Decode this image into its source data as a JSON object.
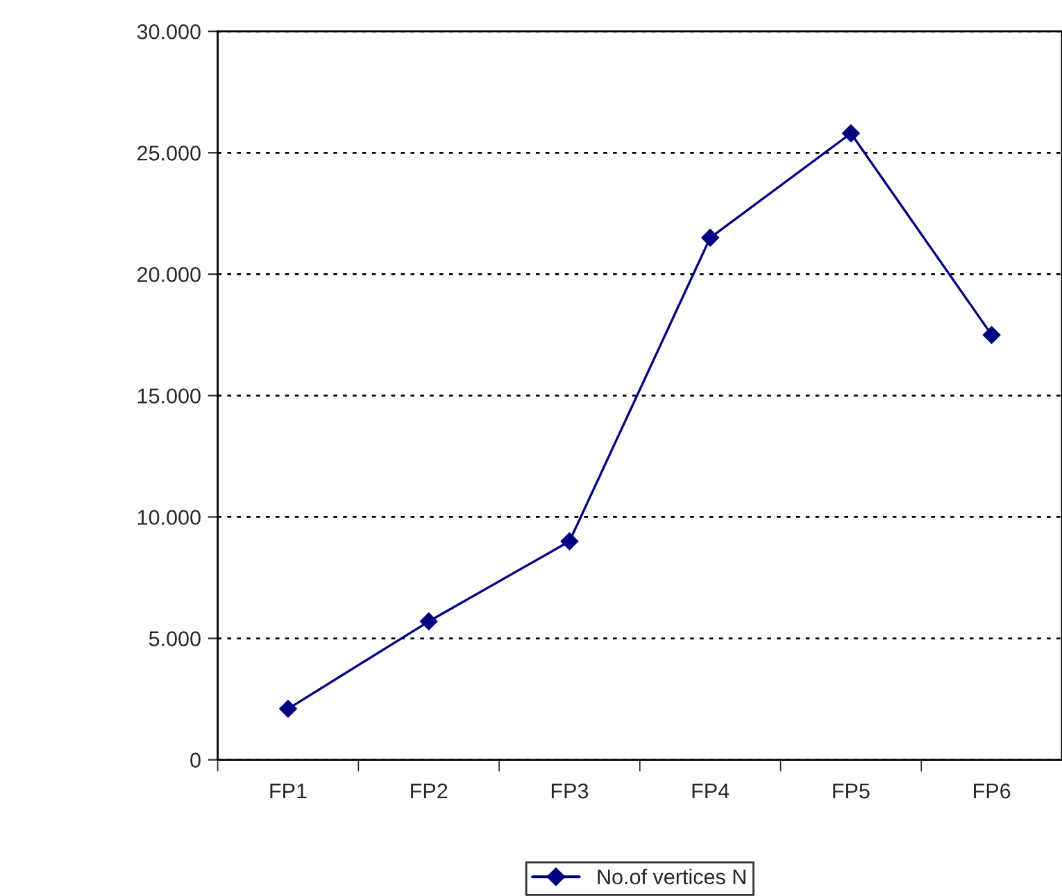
{
  "chart_data": {
    "type": "line",
    "categories": [
      "FP1",
      "FP2",
      "FP3",
      "FP4",
      "FP5",
      "FP6"
    ],
    "series": [
      {
        "name": "No.of vertices N",
        "color": "#000080",
        "values": [
          2100,
          5700,
          9000,
          21500,
          25800,
          17500
        ]
      }
    ],
    "ylim": [
      0,
      30000
    ],
    "yticks": [
      0,
      {
        "value": 5000,
        "label": "5.000"
      },
      {
        "value": 10000,
        "label": "10.000"
      },
      {
        "value": 15000,
        "label": "15.000"
      },
      {
        "value": 20000,
        "label": "20.000"
      },
      {
        "value": 25000,
        "label": "25.000"
      },
      {
        "value": 30000,
        "label": "30.000"
      }
    ],
    "grid": "y",
    "legend": "bottom",
    "marker": "diamond",
    "line_style": "solid"
  }
}
